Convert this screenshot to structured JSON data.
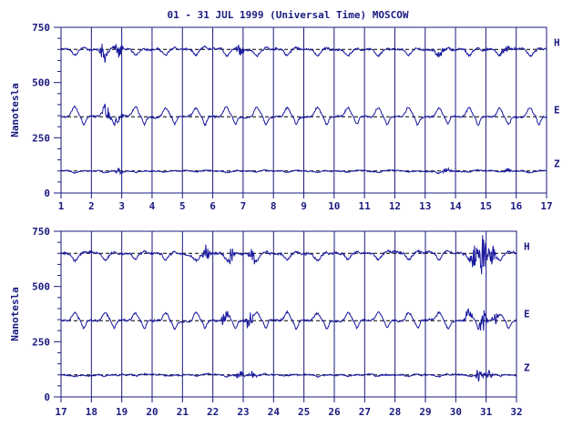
{
  "title": "01 - 31 JUL 1999 (Universal Time) MOSCOW",
  "colors": {
    "ink": "#1a1a80",
    "trace": "#1a1aa0",
    "background": "#ffffff"
  },
  "chart_data": [
    {
      "type": "line",
      "panel": "top",
      "ylabel": "Nanotesla",
      "xlim": [
        1,
        17
      ],
      "ylim": [
        0,
        750
      ],
      "y_ticks": [
        0,
        250,
        500,
        750
      ],
      "x_tick_labels": [
        "1",
        "2",
        "3",
        "4",
        "5",
        "6",
        "7",
        "8",
        "9",
        "10",
        "11",
        "12",
        "13",
        "14",
        "15",
        "16",
        "17"
      ],
      "series": [
        {
          "name": "H",
          "baseline": 650,
          "daily_amplitude": 28,
          "noise": 7,
          "disturbances": [
            {
              "day": 2.4,
              "amp": 45
            },
            {
              "day": 2.9,
              "amp": 40
            },
            {
              "day": 6.9,
              "amp": 25
            },
            {
              "day": 13.5,
              "amp": 20
            },
            {
              "day": 15.6,
              "amp": 30
            }
          ]
        },
        {
          "name": "E",
          "baseline": 345,
          "daily_amplitude": 40,
          "noise": 6,
          "disturbances": [
            {
              "day": 2.5,
              "amp": 35
            },
            {
              "day": 2.9,
              "amp": 30
            }
          ]
        },
        {
          "name": "Z",
          "baseline": 100,
          "daily_amplitude": 6,
          "noise": 4,
          "disturbances": [
            {
              "day": 2.9,
              "amp": 15
            },
            {
              "day": 13.7,
              "amp": 15
            },
            {
              "day": 15.7,
              "amp": 12
            }
          ]
        }
      ]
    },
    {
      "type": "line",
      "panel": "bottom",
      "ylabel": "Nanotesla",
      "xlim": [
        17,
        32
      ],
      "ylim": [
        0,
        750
      ],
      "y_ticks": [
        0,
        250,
        500,
        750
      ],
      "x_tick_labels": [
        "17",
        "18",
        "19",
        "20",
        "21",
        "22",
        "23",
        "24",
        "25",
        "26",
        "27",
        "28",
        "29",
        "30",
        "31",
        "32"
      ],
      "series": [
        {
          "name": "H",
          "baseline": 650,
          "daily_amplitude": 28,
          "noise": 8,
          "disturbances": [
            {
              "day": 21.8,
              "amp": 40
            },
            {
              "day": 22.6,
              "amp": 40
            },
            {
              "day": 23.3,
              "amp": 35
            },
            {
              "day": 30.6,
              "amp": 60
            },
            {
              "day": 30.9,
              "amp": 110
            },
            {
              "day": 31.2,
              "amp": 45
            }
          ]
        },
        {
          "name": "E",
          "baseline": 345,
          "daily_amplitude": 38,
          "noise": 7,
          "disturbances": [
            {
              "day": 22.4,
              "amp": 40
            },
            {
              "day": 23.2,
              "amp": 45
            },
            {
              "day": 30.4,
              "amp": 35
            },
            {
              "day": 30.9,
              "amp": 60
            },
            {
              "day": 31.3,
              "amp": 40
            }
          ]
        },
        {
          "name": "Z",
          "baseline": 100,
          "daily_amplitude": 6,
          "noise": 5,
          "disturbances": [
            {
              "day": 22.9,
              "amp": 25
            },
            {
              "day": 23.3,
              "amp": 15
            },
            {
              "day": 30.8,
              "amp": 35
            },
            {
              "day": 31.1,
              "amp": 20
            }
          ]
        }
      ]
    }
  ]
}
